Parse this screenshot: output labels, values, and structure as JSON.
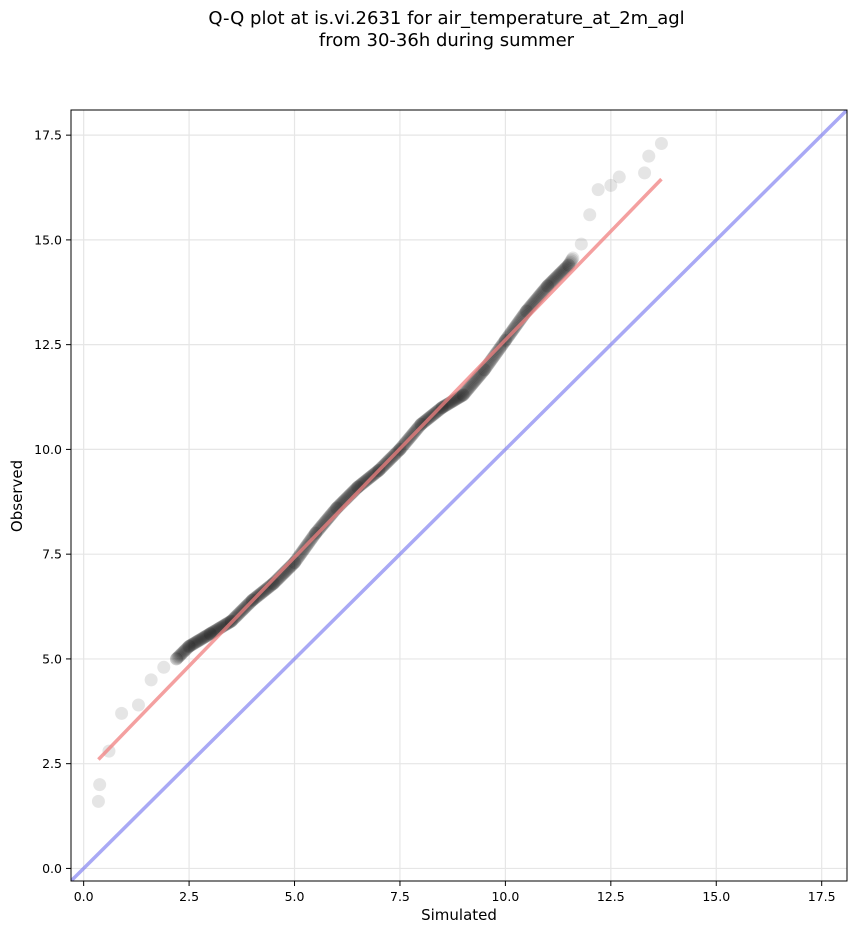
{
  "chart_data": {
    "type": "scatter",
    "title_line1": "Q-Q plot at is.vi.2631 for air_temperature_at_2m_agl",
    "title_line2": "from 30-36h during summer",
    "xlabel": "Simulated",
    "ylabel": "Observed",
    "xlim": [
      -0.3,
      18.1
    ],
    "ylim": [
      -0.3,
      18.1
    ],
    "xticks": [
      0.0,
      2.5,
      5.0,
      7.5,
      10.0,
      12.5,
      15.0,
      17.5
    ],
    "yticks": [
      0.0,
      2.5,
      5.0,
      7.5,
      10.0,
      12.5,
      15.0,
      17.5
    ],
    "tick_labels": [
      "0.0",
      "2.5",
      "5.0",
      "7.5",
      "10.0",
      "12.5",
      "15.0",
      "17.5"
    ],
    "grid": true,
    "point_color": "#000000",
    "fit_line": {
      "color": "#f08080",
      "x": [
        0.35,
        13.7
      ],
      "y": [
        2.6,
        16.45
      ]
    },
    "identity_line": {
      "color": "#7b7bf0"
    },
    "qq_anchors": {
      "x": [
        0.35,
        0.38,
        0.6,
        0.9,
        1.3,
        1.6,
        1.9,
        2.2,
        2.5,
        3.0,
        3.5,
        4.0,
        4.5,
        5.0,
        5.5,
        6.0,
        6.5,
        7.0,
        7.5,
        8.0,
        8.5,
        9.0,
        9.5,
        10.0,
        10.5,
        11.0,
        11.5,
        11.8,
        12.0,
        12.2,
        12.5,
        12.7,
        13.3,
        13.4,
        13.7
      ],
      "y": [
        1.6,
        2.0,
        2.8,
        3.7,
        3.9,
        4.5,
        4.8,
        5.0,
        5.3,
        5.6,
        5.9,
        6.4,
        6.8,
        7.3,
        8.0,
        8.6,
        9.1,
        9.5,
        10.0,
        10.6,
        11.0,
        11.3,
        11.9,
        12.6,
        13.3,
        13.9,
        14.4,
        14.9,
        15.6,
        16.2,
        16.3,
        16.5,
        16.6,
        17.0,
        17.3
      ]
    }
  }
}
